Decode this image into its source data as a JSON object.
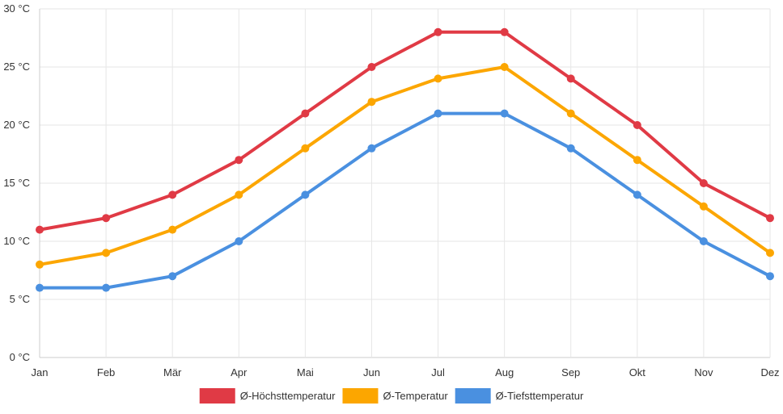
{
  "chart_data": {
    "type": "line",
    "title": "",
    "xlabel": "",
    "ylabel": "",
    "categories": [
      "Jan",
      "Feb",
      "Mär",
      "Apr",
      "Mai",
      "Jun",
      "Jul",
      "Aug",
      "Sep",
      "Okt",
      "Nov",
      "Dez"
    ],
    "ylim": [
      0,
      30
    ],
    "yticks": [
      0,
      5,
      10,
      15,
      20,
      25,
      30
    ],
    "ytick_labels": [
      "0 °C",
      "5 °C",
      "10 °C",
      "15 °C",
      "20 °C",
      "25 °C",
      "30 °C"
    ],
    "grid": true,
    "legend_position": "bottom",
    "series": [
      {
        "name": "Ø-Höchsttemperatur",
        "color": "#e03a45",
        "values": [
          11,
          12,
          14,
          17,
          21,
          25,
          28,
          28,
          24,
          20,
          15,
          12
        ]
      },
      {
        "name": "Ø-Temperatur",
        "color": "#fca600",
        "values": [
          8,
          9,
          11,
          14,
          18,
          22,
          24,
          25,
          21,
          17,
          13,
          9
        ]
      },
      {
        "name": "Ø-Tiefsttemperatur",
        "color": "#4a90e0",
        "values": [
          6,
          6,
          7,
          10,
          14,
          18,
          21,
          21,
          18,
          14,
          10,
          7
        ]
      }
    ]
  }
}
